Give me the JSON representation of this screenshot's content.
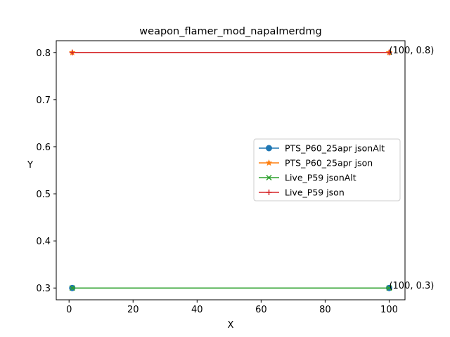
{
  "chart_data": {
    "type": "line",
    "title": "weapon_flamer_mod_napalmerdmg",
    "xlabel": "X",
    "ylabel": "Y",
    "xlim": [
      -4.0,
      104.95
    ],
    "ylim": [
      0.275,
      0.825
    ],
    "xticks": [
      0,
      20,
      40,
      60,
      80,
      100
    ],
    "xtick_labels": [
      "0",
      "20",
      "40",
      "60",
      "80",
      "100"
    ],
    "yticks": [
      0.3,
      0.4,
      0.5,
      0.6,
      0.7,
      0.8
    ],
    "ytick_labels": [
      "0.3",
      "0.4",
      "0.5",
      "0.6",
      "0.7",
      "0.8"
    ],
    "grid": false,
    "legend_position": "center-right",
    "series": [
      {
        "name": "PTS_P60_25apr jsonAlt",
        "color": "#1f77b4",
        "marker": "circle",
        "x": [
          1,
          100
        ],
        "y": [
          0.3,
          0.3
        ]
      },
      {
        "name": "PTS_P60_25apr json",
        "color": "#ff7f0e",
        "marker": "star",
        "x": [
          1,
          100
        ],
        "y": [
          0.8,
          0.8
        ]
      },
      {
        "name": "Live_P59 jsonAlt",
        "color": "#2ca02c",
        "marker": "x",
        "x": [
          1,
          100
        ],
        "y": [
          0.3,
          0.3
        ]
      },
      {
        "name": "Live_P59 json",
        "color": "#d62728",
        "marker": "plus",
        "x": [
          1,
          100
        ],
        "y": [
          0.8,
          0.8
        ]
      }
    ],
    "annotations": [
      {
        "text": "(100, 0.8)",
        "x": 100,
        "y": 0.8
      },
      {
        "text": "(100, 0.3)",
        "x": 100,
        "y": 0.3
      }
    ]
  }
}
